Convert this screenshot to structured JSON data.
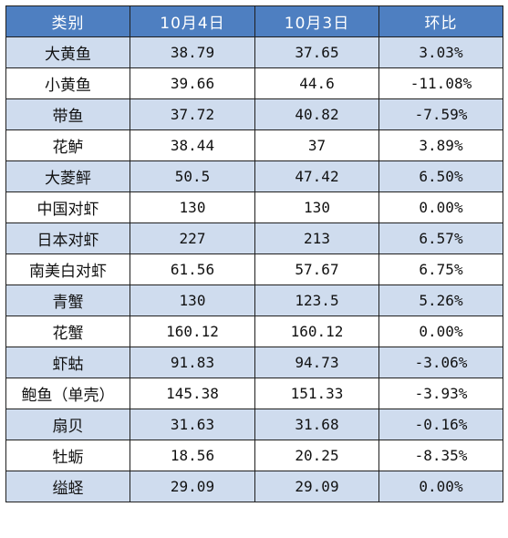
{
  "table": {
    "headers": [
      "类别",
      "10月4日",
      "10月3日",
      "环比"
    ],
    "rows": [
      [
        "大黄鱼",
        "38.79",
        "37.65",
        "3.03%"
      ],
      [
        "小黄鱼",
        "39.66",
        "44.6",
        "-11.08%"
      ],
      [
        "带鱼",
        "37.72",
        "40.82",
        "-7.59%"
      ],
      [
        "花鲈",
        "38.44",
        "37",
        "3.89%"
      ],
      [
        "大菱鲆",
        "50.5",
        "47.42",
        "6.50%"
      ],
      [
        "中国对虾",
        "130",
        "130",
        "0.00%"
      ],
      [
        "日本对虾",
        "227",
        "213",
        "6.57%"
      ],
      [
        "南美白对虾",
        "61.56",
        "57.67",
        "6.75%"
      ],
      [
        "青蟹",
        "130",
        "123.5",
        "5.26%"
      ],
      [
        "花蟹",
        "160.12",
        "160.12",
        "0.00%"
      ],
      [
        "虾蛄",
        "91.83",
        "94.73",
        "-3.06%"
      ],
      [
        "鲍鱼（单壳）",
        "145.38",
        "151.33",
        "-3.93%"
      ],
      [
        "扇贝",
        "31.63",
        "31.68",
        "-0.16%"
      ],
      [
        "牡蛎",
        "18.56",
        "20.25",
        "-8.35%"
      ],
      [
        "缢蛏",
        "29.09",
        "29.09",
        "0.00%"
      ]
    ]
  },
  "colors": {
    "header_bg": "#4e7fc1",
    "shaded_row_bg": "#cfdcee",
    "plain_row_bg": "#ffffff",
    "border": "#1f1f1f"
  }
}
